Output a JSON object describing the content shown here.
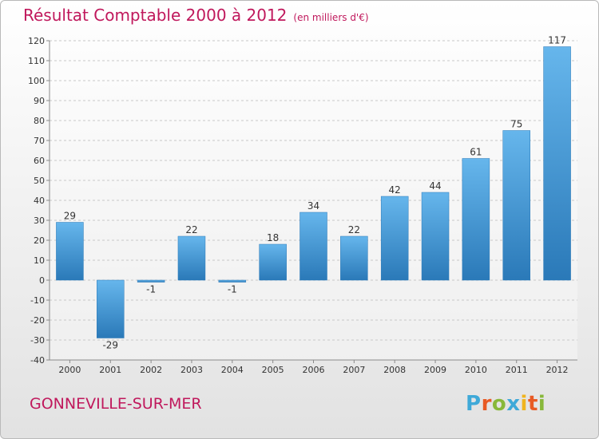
{
  "header": {
    "title": "Résultat Comptable 2000 à 2012",
    "unit": "(en milliers d'€)"
  },
  "footer": {
    "place": "GONNEVILLE-SUR-MER",
    "logo": "Proxiti",
    "logo_colors": [
      "#3fa9d8",
      "#e85a24",
      "#88b83a",
      "#3fa9d8",
      "#f0b41e",
      "#e85a24",
      "#88b83a"
    ]
  },
  "colors": {
    "bar": "#3d97d8",
    "bar_light": "#66b6ec",
    "bar_dark": "#2a79b8",
    "title": "#c0185c"
  },
  "chart_data": {
    "type": "bar",
    "categories": [
      "2000",
      "2001",
      "2002",
      "2003",
      "2004",
      "2005",
      "2006",
      "2007",
      "2008",
      "2009",
      "2010",
      "2011",
      "2012"
    ],
    "values": [
      29,
      -29,
      -1,
      22,
      -1,
      18,
      34,
      22,
      42,
      44,
      61,
      75,
      117
    ],
    "data_labels": [
      "29",
      "-29",
      "-1",
      "22",
      "-1",
      "18",
      "34",
      "22",
      "42",
      "44",
      "61",
      "75",
      "117"
    ],
    "title": "Résultat Comptable 2000 à 2012",
    "subtitle": "(en milliers d'€)",
    "ylim": [
      -40,
      120
    ],
    "yticks": [
      -40,
      -30,
      -20,
      -10,
      0,
      10,
      20,
      30,
      40,
      50,
      60,
      70,
      80,
      90,
      100,
      110,
      120
    ],
    "grid": true,
    "legend": "none"
  }
}
